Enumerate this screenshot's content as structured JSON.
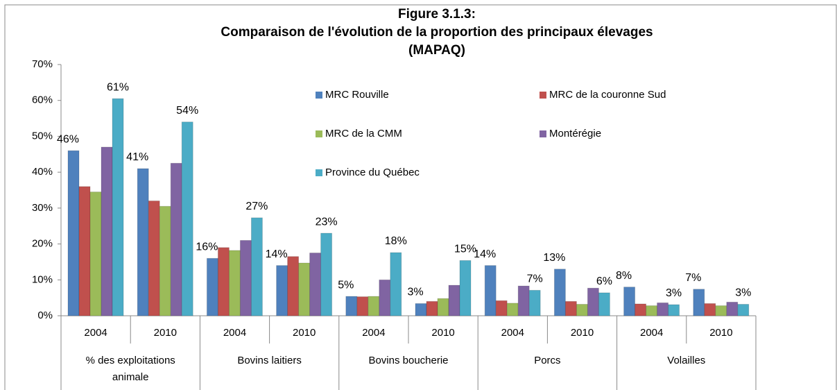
{
  "chart_data": {
    "type": "bar",
    "title": "Figure 3.1.3:",
    "subtitle": "Comparaison de l'évolution de la proportion des principaux élevages (MAPAQ)",
    "categories": [
      "2004",
      "2010",
      "2004",
      "2010",
      "2004",
      "2010",
      "2004",
      "2010",
      "2004",
      "2010"
    ],
    "category_groups": [
      "% des exploitations animale",
      "Bovins laitiers",
      "Bovins boucherie",
      "Porcs",
      "Volailles"
    ],
    "series": [
      {
        "name": "MRC Rouville",
        "color": "#4f81bd",
        "values": [
          46,
          41,
          16,
          14,
          5.4,
          3.4,
          14,
          13,
          8,
          7.4
        ],
        "value_labels": [
          "46%",
          "41%",
          "16%",
          "14%",
          "5%",
          "3%",
          "14%",
          "13%",
          "8%",
          "7%"
        ]
      },
      {
        "name": "MRC de la couronne Sud",
        "color": "#c0504d",
        "values": [
          36,
          32,
          19,
          16.5,
          5.3,
          4,
          4.2,
          4,
          3.3,
          3.4
        ]
      },
      {
        "name": "MRC de la CMM",
        "color": "#9bbb59",
        "values": [
          34.5,
          30.5,
          18.2,
          14.7,
          5.4,
          4.8,
          3.5,
          3.2,
          2.8,
          2.8
        ]
      },
      {
        "name": "Montérégie",
        "color": "#8064a2",
        "values": [
          47,
          42.5,
          21,
          17.5,
          10,
          8.5,
          8.3,
          7.7,
          3.6,
          3.8
        ]
      },
      {
        "name": "Province du Québec",
        "color": "#4bacc6",
        "values": [
          60.5,
          54,
          27.3,
          23,
          17.6,
          15.4,
          7.1,
          6.4,
          3.1,
          3.2
        ],
        "value_labels": [
          "61%",
          "54%",
          "27%",
          "23%",
          "18%",
          "15%",
          "7%",
          "6%",
          "3%",
          "3%"
        ]
      }
    ],
    "ylim": [
      0,
      70
    ],
    "yticks": [
      {
        "value": 0,
        "label": "0%"
      },
      {
        "value": 10,
        "label": "10%"
      },
      {
        "value": 20,
        "label": "20%"
      },
      {
        "value": 30,
        "label": "30%"
      },
      {
        "value": 40,
        "label": "40%"
      },
      {
        "value": 50,
        "label": "50%"
      },
      {
        "value": 60,
        "label": "60%"
      },
      {
        "value": 70,
        "label": "70%"
      }
    ],
    "grid": false
  }
}
